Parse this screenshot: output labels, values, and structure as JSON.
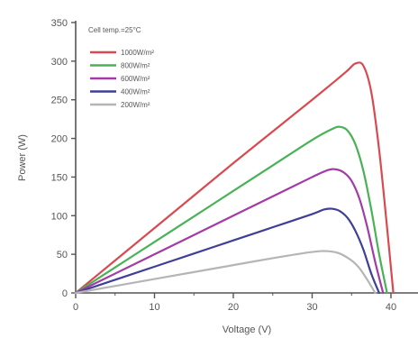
{
  "chart_data": {
    "type": "line",
    "title": "",
    "xlabel": "Voltage (V)",
    "ylabel": "Power (W)",
    "xlim": [
      0,
      43
    ],
    "ylim": [
      0,
      350
    ],
    "xticks": [
      0,
      10,
      20,
      30,
      40
    ],
    "yticks": [
      0,
      50,
      100,
      150,
      200,
      250,
      300,
      350
    ],
    "grid": false,
    "legend": {
      "title": "Cell temp.=25°C",
      "placement": "top-left"
    },
    "series": [
      {
        "name": "1000W/m²",
        "color": "#d84a4f",
        "x": [
          0,
          5,
          10,
          15,
          20,
          25,
          30,
          33,
          34.5,
          35.5,
          36.5,
          37.5,
          38.5,
          39.5,
          40.3
        ],
        "y": [
          0,
          42,
          84,
          126,
          168,
          209,
          250,
          275,
          288,
          297,
          294,
          260,
          185,
          85,
          0
        ]
      },
      {
        "name": "800W/m²",
        "color": "#49b257",
        "x": [
          0,
          5,
          10,
          15,
          20,
          25,
          30,
          32.5,
          33.5,
          34.5,
          35.5,
          36.5,
          37.5,
          38.5,
          39.5
        ],
        "y": [
          0,
          33,
          66,
          99,
          132,
          165,
          198,
          212,
          215,
          210,
          192,
          158,
          108,
          50,
          0
        ]
      },
      {
        "name": "600W/m²",
        "color": "#a23ba6",
        "x": [
          0,
          5,
          10,
          15,
          20,
          25,
          30,
          32,
          33,
          34,
          35,
          36,
          37,
          38,
          39
        ],
        "y": [
          0,
          25,
          50,
          75,
          100,
          125,
          150,
          159,
          160,
          156,
          145,
          122,
          85,
          40,
          0
        ]
      },
      {
        "name": "400W/m²",
        "color": "#3f3f96",
        "x": [
          0,
          5,
          10,
          15,
          20,
          25,
          30,
          31.5,
          32.5,
          33.5,
          34.5,
          35.5,
          36.5,
          37.5,
          38.5
        ],
        "y": [
          0,
          17,
          34,
          51,
          68,
          85,
          102,
          108,
          109,
          106,
          97,
          80,
          56,
          25,
          0
        ]
      },
      {
        "name": "200W/m²",
        "color": "#b5b5b5",
        "x": [
          0,
          5,
          10,
          15,
          20,
          25,
          30,
          32,
          33.5,
          35,
          36,
          37,
          38
        ],
        "y": [
          0,
          9,
          18,
          27,
          36,
          45,
          53,
          54,
          51,
          42,
          32,
          17,
          0
        ]
      }
    ]
  }
}
